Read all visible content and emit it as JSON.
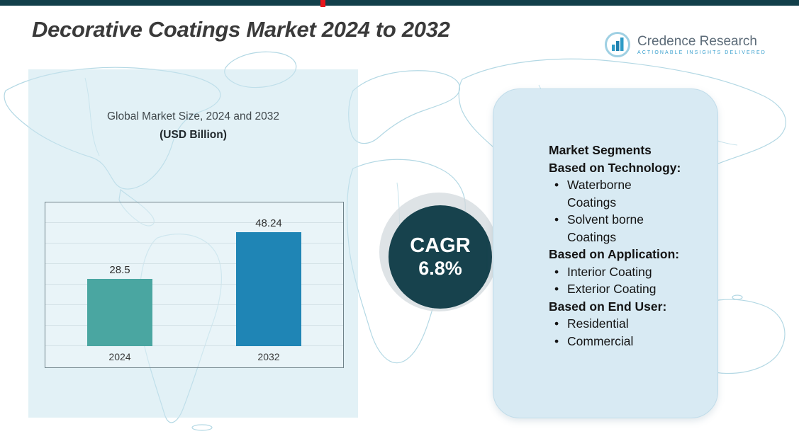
{
  "page": {
    "title": "Decorative Coatings Market 2024 to 2032"
  },
  "logo": {
    "name": "Credence Research",
    "tagline": "Actionable Insights Delivered"
  },
  "chart_data": {
    "type": "bar",
    "title": "Global Market Size, 2024 and 2032",
    "subtitle": "(USD Billion)",
    "categories": [
      "2024",
      "2032"
    ],
    "values": [
      28.5,
      48.24
    ],
    "value_labels": [
      "28.5",
      "48.24"
    ],
    "series_colors": [
      "#4aa6a1",
      "#1f85b5"
    ],
    "ylim": [
      0,
      60
    ],
    "grid": true,
    "legend": false
  },
  "cagr": {
    "label": "CAGR",
    "value": "6.8%"
  },
  "segments": {
    "title": "Market Segments",
    "groups": [
      {
        "heading": "Based on Technology:",
        "items": [
          "Waterborne Coatings",
          "Solvent borne Coatings"
        ]
      },
      {
        "heading": "Based on Application:",
        "items": [
          "Interior Coating",
          "Exterior Coating"
        ]
      },
      {
        "heading": "Based on End User:",
        "items": [
          "Residential",
          "Commercial"
        ]
      }
    ]
  },
  "colors": {
    "top_bar": "#123f4a",
    "cagr_circle": "#17424d",
    "bar_teal": "#4aa6a1",
    "bar_blue": "#1f85b5",
    "panel_blue": "#d8eaf3",
    "map_line": "#b3d8e4",
    "logo_blue": "#3aa0ce"
  }
}
